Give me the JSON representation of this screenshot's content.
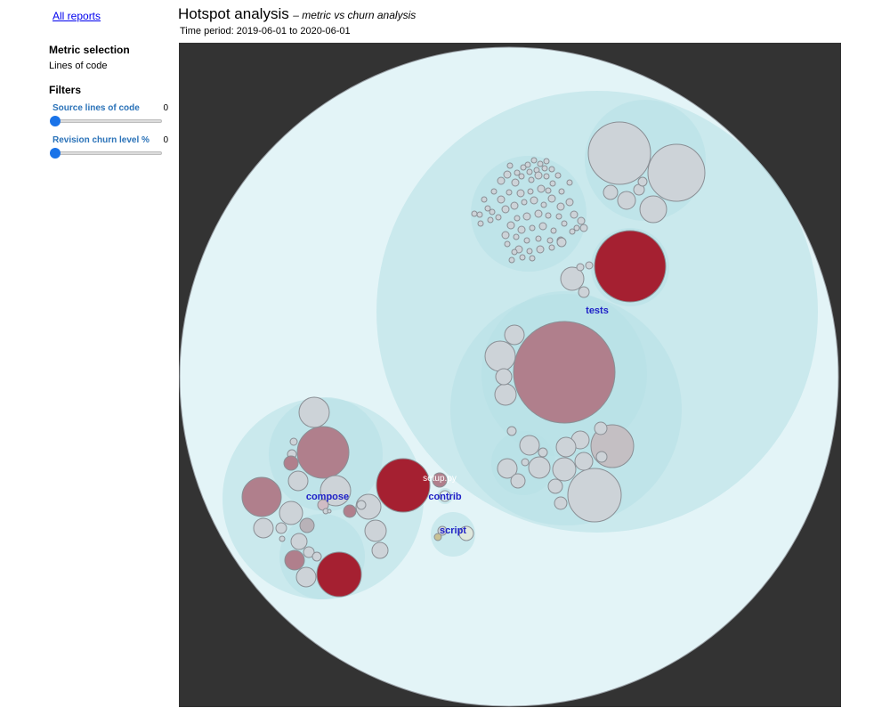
{
  "nav": {
    "all_reports_label": "All reports"
  },
  "header": {
    "title": "Hotspot analysis",
    "subtitle": "– metric vs churn analysis",
    "time_period": "Time period: 2019-06-01 to 2020-06-01"
  },
  "sidebar": {
    "metric_heading": "Metric selection",
    "metric_value": "Lines of code",
    "filters_heading": "Filters",
    "filters": [
      {
        "label": "Source lines of code",
        "value": "0"
      },
      {
        "label": "Revision churn level %",
        "value": "0"
      }
    ]
  },
  "colors": {
    "outer_bg": "#e3f4f7",
    "folder_fill": "#c3e6ea",
    "file_neutral": "#cdd3d8",
    "hotspot_high": "#a52031",
    "hotspot_mid": "#b07f8c",
    "viz_background": "#333333",
    "label_folder": "#1f21c7",
    "label_file": "#ffffff"
  },
  "labels": {
    "tests": "tests",
    "compose": "compose",
    "contrib": "contrib",
    "script": "script",
    "setup_py": "setup.py"
  }
}
